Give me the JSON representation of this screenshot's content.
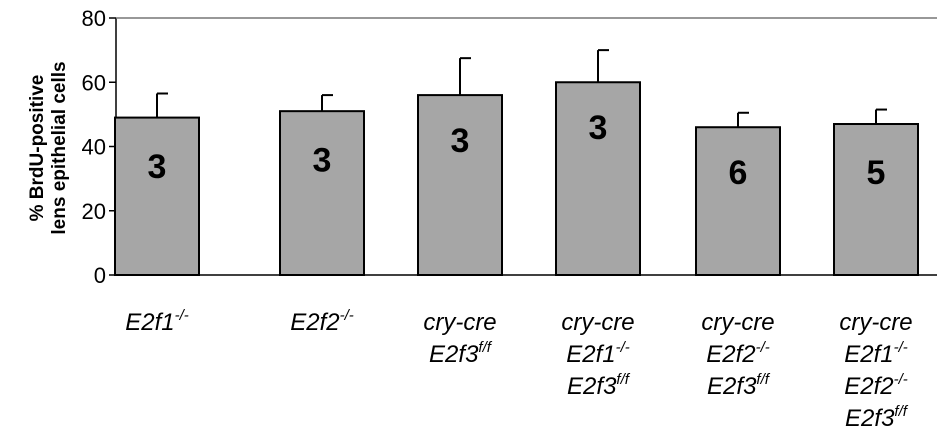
{
  "chart_data": {
    "type": "bar",
    "title": "",
    "xlabel": "",
    "ylabel_lines": [
      "% BrdU-positive",
      "lens epithelial cells"
    ],
    "ylim": [
      0,
      80
    ],
    "yticks": [
      "0",
      "20",
      "40",
      "60",
      "80"
    ],
    "grid": false,
    "bar_color": "#a6a6a6",
    "categories": [
      {
        "lines": [
          {
            "text": "E2f1",
            "sup": "-/-"
          }
        ]
      },
      {
        "lines": [
          {
            "text": "E2f2",
            "sup": "-/-"
          }
        ]
      },
      {
        "lines": [
          {
            "text": "cry-cre",
            "sup": ""
          },
          {
            "text": "E2f3",
            "sup": "f/f"
          }
        ]
      },
      {
        "lines": [
          {
            "text": "cry-cre",
            "sup": ""
          },
          {
            "text": "E2f1",
            "sup": "-/-"
          },
          {
            "text": "E2f3",
            "sup": "f/f"
          }
        ]
      },
      {
        "lines": [
          {
            "text": "cry-cre",
            "sup": ""
          },
          {
            "text": "E2f2",
            "sup": "-/-"
          },
          {
            "text": "E2f3",
            "sup": "f/f"
          }
        ]
      },
      {
        "lines": [
          {
            "text": "cry-cre",
            "sup": ""
          },
          {
            "text": "E2f1",
            "sup": "-/-"
          },
          {
            "text": "E2f2",
            "sup": "-/-"
          },
          {
            "text": "E2f3",
            "sup": "f/f"
          }
        ]
      }
    ],
    "values": [
      49,
      51,
      56,
      60,
      46,
      47
    ],
    "error_upper": [
      56.5,
      56,
      67.5,
      70,
      50.5,
      51.5
    ],
    "bar_labels": [
      "3",
      "3",
      "3",
      "3",
      "6",
      "5"
    ],
    "bar_label_y": [
      34,
      36,
      42,
      46,
      32,
      32
    ]
  }
}
